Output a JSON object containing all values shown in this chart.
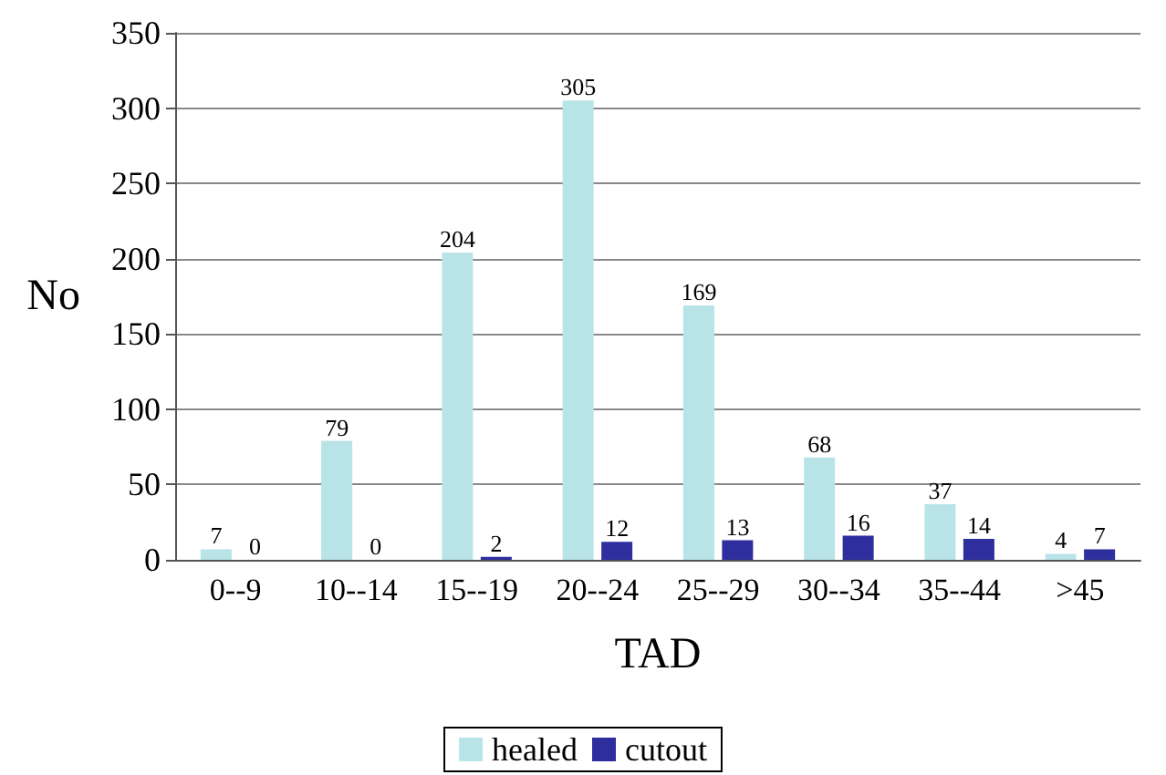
{
  "chart_data": {
    "type": "bar",
    "xlabel": "TAD",
    "ylabel": "No",
    "categories": [
      "0--9",
      "10--14",
      "15--19",
      "20--24",
      "25--29",
      "30--34",
      "35--44",
      ">45"
    ],
    "series": [
      {
        "name": "healed",
        "color": "#b8e4e8",
        "values": [
          7,
          79,
          204,
          305,
          169,
          68,
          37,
          4
        ]
      },
      {
        "name": "cutout",
        "color": "#2e2e9e",
        "values": [
          0,
          0,
          2,
          12,
          13,
          16,
          14,
          7
        ]
      }
    ],
    "ylim": [
      0,
      350
    ],
    "yticks": [
      0,
      50,
      100,
      150,
      200,
      250,
      300,
      350
    ],
    "grid": "y",
    "legend": "bottom",
    "data_labels": true
  }
}
